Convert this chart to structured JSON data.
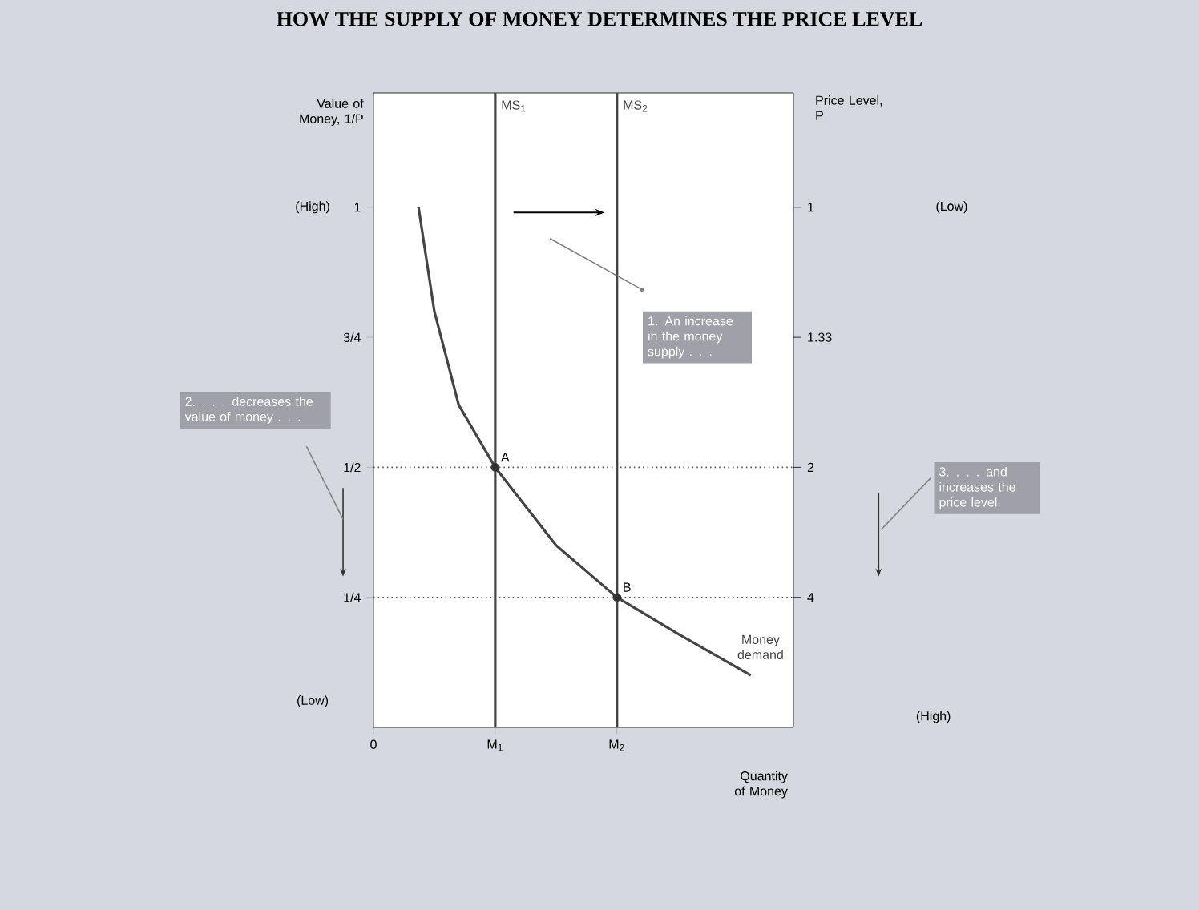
{
  "chart_data": {
    "type": "line",
    "title": "HOW THE SUPPLY OF MONEY DETERMINES THE PRICE LEVEL",
    "xlabel": "Quantity of Money",
    "ylabel": "Value of Money, 1/P",
    "y2label": "Price Level, P",
    "xlim": [
      0,
      3.45
    ],
    "xticks": [
      {
        "value": 0,
        "label": "0"
      },
      {
        "value": 1,
        "label": "M$_{1}$"
      },
      {
        "value": 2,
        "label": "M$_{2}$"
      }
    ],
    "ylim": [
      0,
      1.22
    ],
    "yticks": [
      {
        "value": 0.25,
        "label": "1/4"
      },
      {
        "value": 0.5,
        "label": "1/2"
      },
      {
        "value": 0.75,
        "label": "3/4"
      },
      {
        "value": 1,
        "label": "1"
      }
    ],
    "series": [
      {
        "name": "Money demand",
        "color": "#444444",
        "x": [
          0.37,
          0.5,
          0.7,
          1.0,
          1.5,
          2.0,
          2.5,
          3.1
        ],
        "values": [
          1.0,
          0.8,
          0.62,
          0.5,
          0.35,
          0.25,
          0.18,
          0.1
        ]
      },
      {
        "type": "scatter",
        "marker": "circle",
        "color": "#333333",
        "x": [
          1,
          2
        ],
        "values": [
          0.5,
          0.25
        ]
      }
    ],
    "ref_lines": [
      {
        "axis": "x",
        "value": 1,
        "label": "MS$_{1}$",
        "color": "#444444"
      },
      {
        "axis": "x",
        "value": 2,
        "label": "MS$_{2}$",
        "color": "#444444"
      },
      {
        "axis": "y",
        "value": 0.5,
        "line_style": "dotted",
        "color": "#555555"
      },
      {
        "axis": "y",
        "value": 0.25,
        "line_style": "dotted",
        "color": "#555555"
      }
    ],
    "annotations": [
      "1. An increase in the money supply . . .",
      "2. . . . decreases the value of money . . .",
      "3. . . . and increases the price level.",
      "(High)",
      "(Low)",
      "(Low)",
      "(High)",
      {
        "text": "A",
        "x": 1,
        "y": 0.5
      },
      {
        "text": "B",
        "x": 2,
        "y": 0.25
      },
      "1",
      "1.33",
      "2",
      "4"
    ]
  }
}
